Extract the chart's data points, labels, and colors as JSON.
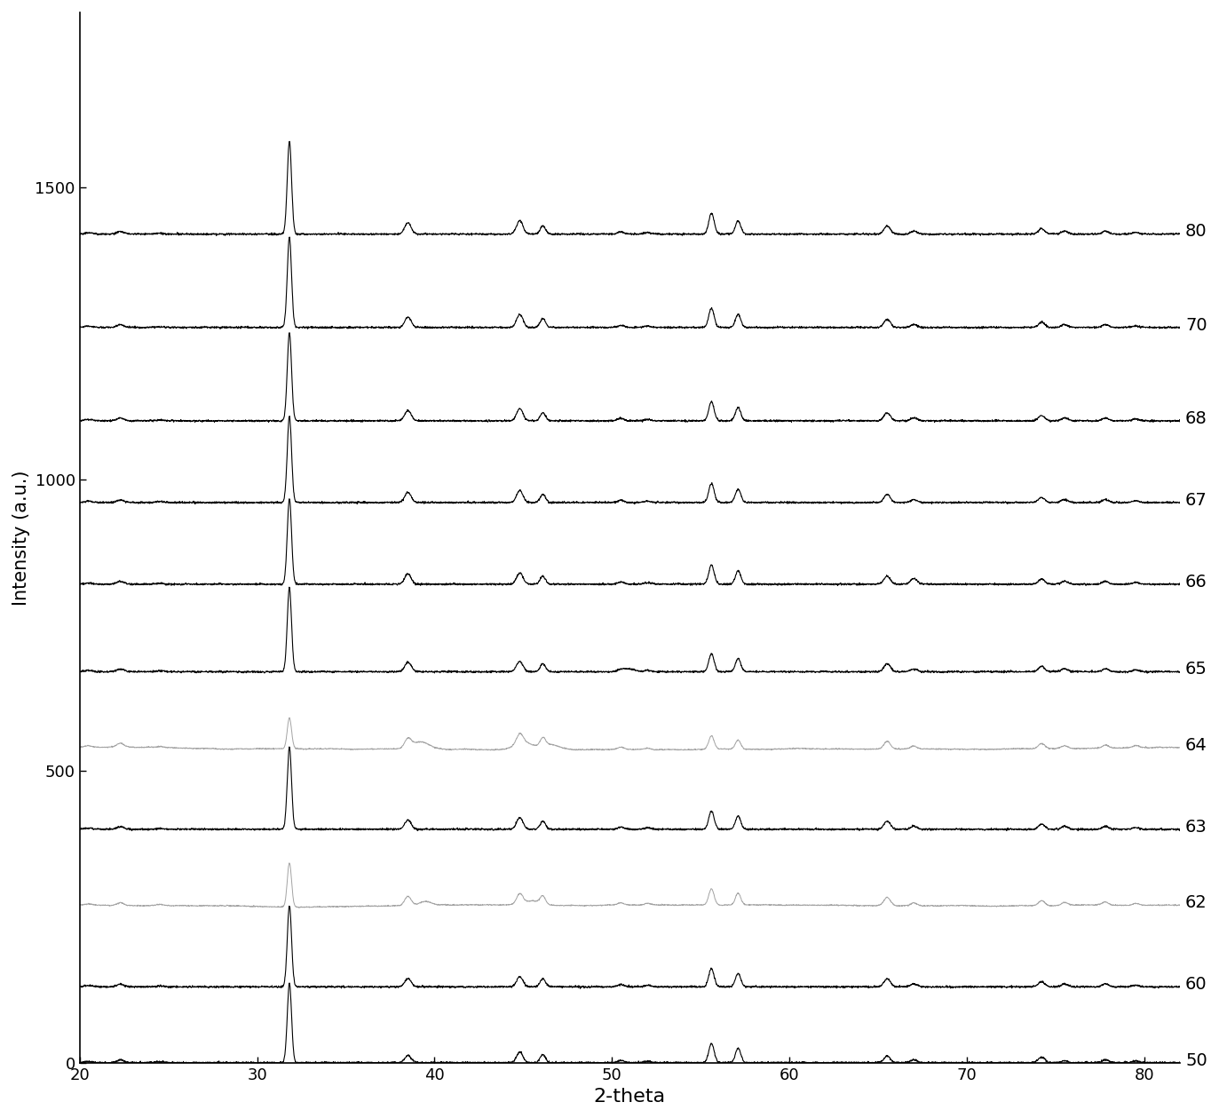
{
  "xlabel": "2-theta",
  "ylabel": "Intensity (a.u.)",
  "xlim": [
    20,
    82
  ],
  "ylim": [
    0,
    1800
  ],
  "yticks": [
    0,
    500,
    1000,
    1500
  ],
  "xticks": [
    20,
    30,
    40,
    50,
    60,
    70,
    80
  ],
  "background_color": "#ffffff",
  "labels": [
    "50",
    "60",
    "62",
    "63",
    "64",
    "65",
    "66",
    "67",
    "68",
    "70",
    "80"
  ],
  "offsets": [
    0,
    130,
    270,
    400,
    540,
    670,
    820,
    960,
    1100,
    1260,
    1420
  ],
  "gray_lines": [
    "62",
    "64"
  ],
  "peak_scale": 1.4,
  "noise_scale": 3.0,
  "label_fontsize": 14,
  "xlabel_fontsize": 16,
  "ylabel_fontsize": 15,
  "tick_labelsize": 13
}
